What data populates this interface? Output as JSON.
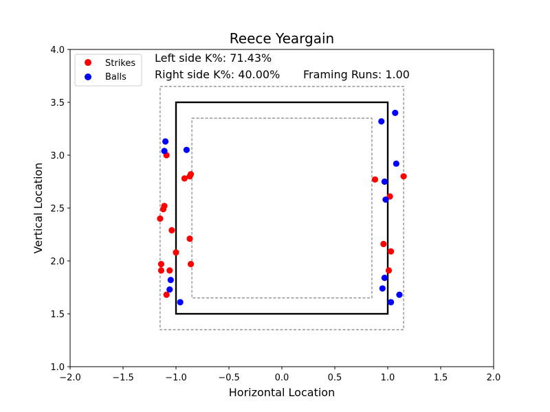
{
  "chart_data": {
    "type": "scatter",
    "title": "Reece Yeargain",
    "xlabel": "Horizontal Location",
    "ylabel": "Vertical Location",
    "xlim": [
      -2.0,
      2.0
    ],
    "ylim": [
      1.0,
      4.0
    ],
    "xticks": [
      "−2.0",
      "−1.5",
      "−1.0",
      "−0.5",
      "0.0",
      "0.5",
      "1.0",
      "1.5",
      "2.0"
    ],
    "yticks": [
      "1.0",
      "1.5",
      "2.0",
      "2.5",
      "3.0",
      "3.5",
      "4.0"
    ],
    "xtick_values": [
      -2.0,
      -1.5,
      -1.0,
      -0.5,
      0.0,
      0.5,
      1.0,
      1.5,
      2.0
    ],
    "ytick_values": [
      1.0,
      1.5,
      2.0,
      2.5,
      3.0,
      3.5,
      4.0
    ],
    "legend_position": "top-left",
    "grid": false,
    "annotations": {
      "left_k": "Left side K%: 71.43%",
      "right_k": "Right side K%: 40.00%",
      "framing": "Framing Runs: 1.00"
    },
    "zones": {
      "strike_zone": {
        "x": [
          -1.0,
          1.0
        ],
        "y": [
          1.5,
          3.5
        ],
        "style": "solid"
      },
      "outer_zone": {
        "x": [
          -1.15,
          1.15
        ],
        "y": [
          1.35,
          3.65
        ],
        "style": "dashed"
      },
      "inner_zone": {
        "x": [
          -0.85,
          0.85
        ],
        "y": [
          1.65,
          3.35
        ],
        "style": "dashed"
      }
    },
    "series": [
      {
        "name": "Strikes",
        "color": "#ff0000",
        "points": [
          {
            "x": -1.09,
            "y": 3.0
          },
          {
            "x": -0.86,
            "y": 2.82
          },
          {
            "x": -0.87,
            "y": 2.8
          },
          {
            "x": -0.92,
            "y": 2.78
          },
          {
            "x": -1.11,
            "y": 2.52
          },
          {
            "x": -1.12,
            "y": 2.49
          },
          {
            "x": -1.15,
            "y": 2.4
          },
          {
            "x": -1.04,
            "y": 2.29
          },
          {
            "x": -0.87,
            "y": 2.21
          },
          {
            "x": -1.0,
            "y": 2.08
          },
          {
            "x": -1.14,
            "y": 1.97
          },
          {
            "x": -0.86,
            "y": 1.97
          },
          {
            "x": -1.14,
            "y": 1.91
          },
          {
            "x": -1.06,
            "y": 1.91
          },
          {
            "x": -1.09,
            "y": 1.68
          },
          {
            "x": 0.88,
            "y": 2.77
          },
          {
            "x": 1.15,
            "y": 2.8
          },
          {
            "x": 1.02,
            "y": 2.61
          },
          {
            "x": 0.96,
            "y": 2.16
          },
          {
            "x": 1.03,
            "y": 2.09
          },
          {
            "x": 1.01,
            "y": 1.91
          }
        ]
      },
      {
        "name": "Balls",
        "color": "#0000ff",
        "points": [
          {
            "x": -1.1,
            "y": 3.13
          },
          {
            "x": -1.11,
            "y": 3.04
          },
          {
            "x": -0.9,
            "y": 3.05
          },
          {
            "x": -1.05,
            "y": 1.82
          },
          {
            "x": -1.06,
            "y": 1.73
          },
          {
            "x": -0.96,
            "y": 1.61
          },
          {
            "x": 1.07,
            "y": 3.4
          },
          {
            "x": 0.94,
            "y": 3.32
          },
          {
            "x": 1.08,
            "y": 2.92
          },
          {
            "x": 0.97,
            "y": 2.75
          },
          {
            "x": 0.98,
            "y": 2.58
          },
          {
            "x": 0.97,
            "y": 1.84
          },
          {
            "x": 0.95,
            "y": 1.74
          },
          {
            "x": 1.11,
            "y": 1.68
          },
          {
            "x": 1.03,
            "y": 1.61
          }
        ]
      }
    ]
  }
}
